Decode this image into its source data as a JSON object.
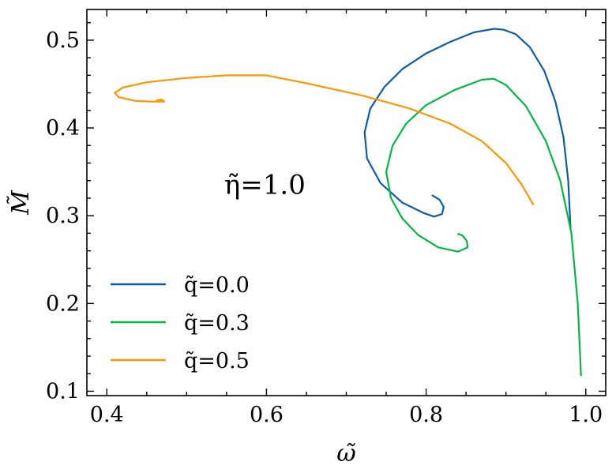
{
  "chart_data": {
    "type": "line",
    "xlabel": "ω̃",
    "ylabel": "M̃",
    "xlim": [
      0.375,
      1.025
    ],
    "ylim": [
      0.095,
      0.535
    ],
    "xticks": [
      0.4,
      0.6,
      0.8,
      1.0
    ],
    "xtick_labels": [
      "0.4",
      "0.6",
      "0.8",
      "1.0"
    ],
    "yticks": [
      0.1,
      0.2,
      0.3,
      0.4,
      0.5
    ],
    "ytick_labels": [
      "0.1",
      "0.2",
      "0.3",
      "0.4",
      "0.5"
    ],
    "grid": false,
    "legend_position": "bottom-left",
    "annotation": "η̃=1.0",
    "series": [
      {
        "name": "q̃=0.0",
        "color": "#0C5DA5",
        "points": [
          [
            0.981,
            0.285
          ],
          [
            0.978,
            0.34
          ],
          [
            0.972,
            0.39
          ],
          [
            0.962,
            0.43
          ],
          [
            0.948,
            0.465
          ],
          [
            0.93,
            0.492
          ],
          [
            0.912,
            0.507
          ],
          [
            0.897,
            0.512
          ],
          [
            0.885,
            0.513
          ],
          [
            0.86,
            0.509
          ],
          [
            0.83,
            0.498
          ],
          [
            0.8,
            0.485
          ],
          [
            0.77,
            0.467
          ],
          [
            0.748,
            0.447
          ],
          [
            0.73,
            0.422
          ],
          [
            0.723,
            0.395
          ],
          [
            0.726,
            0.365
          ],
          [
            0.743,
            0.337
          ],
          [
            0.77,
            0.315
          ],
          [
            0.797,
            0.303
          ],
          [
            0.81,
            0.299
          ],
          [
            0.82,
            0.302
          ],
          [
            0.822,
            0.31
          ],
          [
            0.817,
            0.318
          ],
          [
            0.81,
            0.322
          ],
          [
            0.808,
            0.323
          ]
        ]
      },
      {
        "name": "q̃=0.3",
        "color": "#00B945",
        "points": [
          [
            0.994,
            0.118
          ],
          [
            0.99,
            0.2
          ],
          [
            0.982,
            0.28
          ],
          [
            0.968,
            0.34
          ],
          [
            0.95,
            0.385
          ],
          [
            0.925,
            0.425
          ],
          [
            0.9,
            0.449
          ],
          [
            0.885,
            0.456
          ],
          [
            0.87,
            0.455
          ],
          [
            0.835,
            0.443
          ],
          [
            0.8,
            0.426
          ],
          [
            0.775,
            0.405
          ],
          [
            0.758,
            0.38
          ],
          [
            0.75,
            0.35
          ],
          [
            0.756,
            0.32
          ],
          [
            0.77,
            0.297
          ],
          [
            0.79,
            0.278
          ],
          [
            0.815,
            0.264
          ],
          [
            0.84,
            0.259
          ],
          [
            0.852,
            0.264
          ],
          [
            0.851,
            0.271
          ],
          [
            0.846,
            0.277
          ],
          [
            0.842,
            0.279
          ],
          [
            0.84,
            0.279
          ]
        ]
      },
      {
        "name": "q̃=0.5",
        "color": "#FF9500",
        "points": [
          [
            0.934,
            0.313
          ],
          [
            0.92,
            0.335
          ],
          [
            0.9,
            0.36
          ],
          [
            0.87,
            0.385
          ],
          [
            0.83,
            0.405
          ],
          [
            0.78,
            0.422
          ],
          [
            0.72,
            0.437
          ],
          [
            0.65,
            0.451
          ],
          [
            0.6,
            0.46
          ],
          [
            0.55,
            0.46
          ],
          [
            0.5,
            0.457
          ],
          [
            0.45,
            0.452
          ],
          [
            0.42,
            0.446
          ],
          [
            0.41,
            0.44
          ],
          [
            0.415,
            0.435
          ],
          [
            0.435,
            0.431
          ],
          [
            0.455,
            0.43
          ],
          [
            0.472,
            0.43
          ],
          [
            0.47,
            0.432
          ],
          [
            0.465,
            0.432
          ],
          [
            0.462,
            0.431
          ]
        ]
      }
    ]
  }
}
